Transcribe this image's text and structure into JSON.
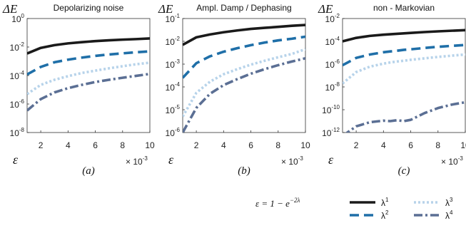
{
  "chart_data": [
    {
      "type": "line",
      "title": "Depolarizing noise",
      "ylabel": "ΔE",
      "xlabel": "ε",
      "panel_label": "(a)",
      "x_multiplier": "× 10",
      "x_multiplier_exp": "-3",
      "yscale": "log",
      "xlim": [
        1,
        10
      ],
      "ylim_exp": [
        -8,
        0
      ],
      "x_ticks": [
        2,
        4,
        6,
        8,
        10
      ],
      "y_ticks_exp": [
        -8,
        -6,
        -4,
        -2,
        0
      ],
      "x": [
        1,
        2,
        3,
        4,
        5,
        6,
        7,
        8,
        9,
        10
      ],
      "series": [
        {
          "name": "λ1",
          "values": [
            0.0035,
            0.0087,
            0.0135,
            0.018,
            0.022,
            0.026,
            0.0295,
            0.033,
            0.036,
            0.04
          ]
        },
        {
          "name": "λ2",
          "values": [
            0.00012,
            0.0004,
            0.00085,
            0.0013,
            0.0018,
            0.0024,
            0.003,
            0.0036,
            0.0043,
            0.005
          ]
        },
        {
          "name": "λ3",
          "values": [
            5e-06,
            2.2e-05,
            5e-05,
            9e-05,
            0.00015,
            0.00022,
            0.00032,
            0.00045,
            0.00062,
            0.0008
          ]
        },
        {
          "name": "λ4",
          "values": [
            3.5e-07,
            2.2e-06,
            6.5e-06,
            1.3e-05,
            2.2e-05,
            3.5e-05,
            5e-05,
            7e-05,
            9.5e-05,
            0.00013
          ]
        }
      ]
    },
    {
      "type": "line",
      "title": "Ampl. Damp / Dephasing",
      "ylabel": "ΔE",
      "xlabel": "ε",
      "panel_label": "(b)",
      "x_multiplier": "× 10",
      "x_multiplier_exp": "-3",
      "yscale": "log",
      "xlim": [
        1,
        10
      ],
      "ylim_exp": [
        -6,
        -1
      ],
      "x_ticks": [
        2,
        4,
        6,
        8,
        10
      ],
      "y_ticks_exp": [
        -6,
        -5,
        -4,
        -3,
        -2,
        -1
      ],
      "x": [
        1,
        2,
        3,
        4,
        5,
        6,
        7,
        8,
        9,
        10
      ],
      "series": [
        {
          "name": "λ1",
          "values": [
            0.007,
            0.015,
            0.02,
            0.025,
            0.03,
            0.035,
            0.039,
            0.043,
            0.048,
            0.052
          ]
        },
        {
          "name": "λ2",
          "values": [
            0.00025,
            0.0011,
            0.0022,
            0.0035,
            0.005,
            0.0068,
            0.0088,
            0.011,
            0.013,
            0.016
          ]
        },
        {
          "name": "λ3",
          "values": [
            5e-06,
            5.5e-05,
            0.00017,
            0.00036,
            0.0006,
            0.00095,
            0.0014,
            0.002,
            0.0028,
            0.0045
          ]
        },
        {
          "name": "λ4",
          "values": [
            1e-06,
            1.2e-05,
            5e-05,
            0.00012,
            0.00022,
            0.00038,
            0.0006,
            0.0009,
            0.0013,
            0.0018
          ]
        }
      ]
    },
    {
      "type": "line",
      "title": "non - Markovian",
      "ylabel": "ΔE",
      "xlabel": "ε",
      "panel_label": "(c)",
      "x_multiplier": "× 10",
      "x_multiplier_exp": "-3",
      "yscale": "log",
      "xlim": [
        1,
        10
      ],
      "ylim_exp": [
        -12,
        -2
      ],
      "x_ticks": [
        2,
        4,
        6,
        8,
        10
      ],
      "y_ticks_exp": [
        -12,
        -10,
        -8,
        -6,
        -4,
        -2
      ],
      "x": [
        1,
        2,
        3,
        4,
        4.5,
        5,
        5.5,
        6,
        7,
        8,
        9,
        10
      ],
      "series": [
        {
          "name": "λ1",
          "values": [
            0.0001,
            0.0002,
            0.0003,
            0.00038,
            0.00042,
            0.00046,
            0.0005,
            0.00055,
            0.00065,
            0.00075,
            0.00085,
            0.00095
          ]
        },
        {
          "name": "λ2",
          "values": [
            8e-07,
            3.5e-06,
            7e-06,
            1.1e-05,
            1.3e-05,
            1.5e-05,
            1.8e-05,
            2e-05,
            2.6e-05,
            3.3e-05,
            4e-05,
            4.8e-05
          ]
        },
        {
          "name": "λ3",
          "values": [
            2e-08,
            2e-07,
            6e-07,
            1.1e-06,
            1.4e-06,
            1.7e-06,
            2e-06,
            2.4e-06,
            3.2e-06,
            4.3e-06,
            5.5e-06,
            7e-06
          ]
        },
        {
          "name": "λ4",
          "values": [
            5e-13,
            3.5e-12,
            8e-12,
            1.1e-11,
            1e-11,
            1.2e-11,
            1e-11,
            1.3e-11,
            5e-11,
            1.4e-10,
            2.8e-10,
            4.5e-10
          ]
        }
      ]
    }
  ],
  "legend": {
    "formula": "ε = 1 − e",
    "formula_exp": "−2λ",
    "entries": [
      {
        "label": "λ",
        "sup": "1",
        "series": "λ1"
      },
      {
        "label": "λ",
        "sup": "2",
        "series": "λ2"
      },
      {
        "label": "λ",
        "sup": "3",
        "series": "λ3"
      },
      {
        "label": "λ",
        "sup": "4",
        "series": "λ4"
      }
    ]
  },
  "styles": {
    "λ1": {
      "color": "#1a1a1a",
      "dash": "",
      "width": 3.6
    },
    "λ2": {
      "color": "#1f6fa8",
      "dash": "13 7",
      "width": 3.6
    },
    "λ3": {
      "color": "#b7d3ea",
      "dash": "3 3",
      "width": 3.6
    },
    "λ4": {
      "color": "#5b6f94",
      "dash": "12 4 3 4",
      "width": 3.6
    }
  }
}
